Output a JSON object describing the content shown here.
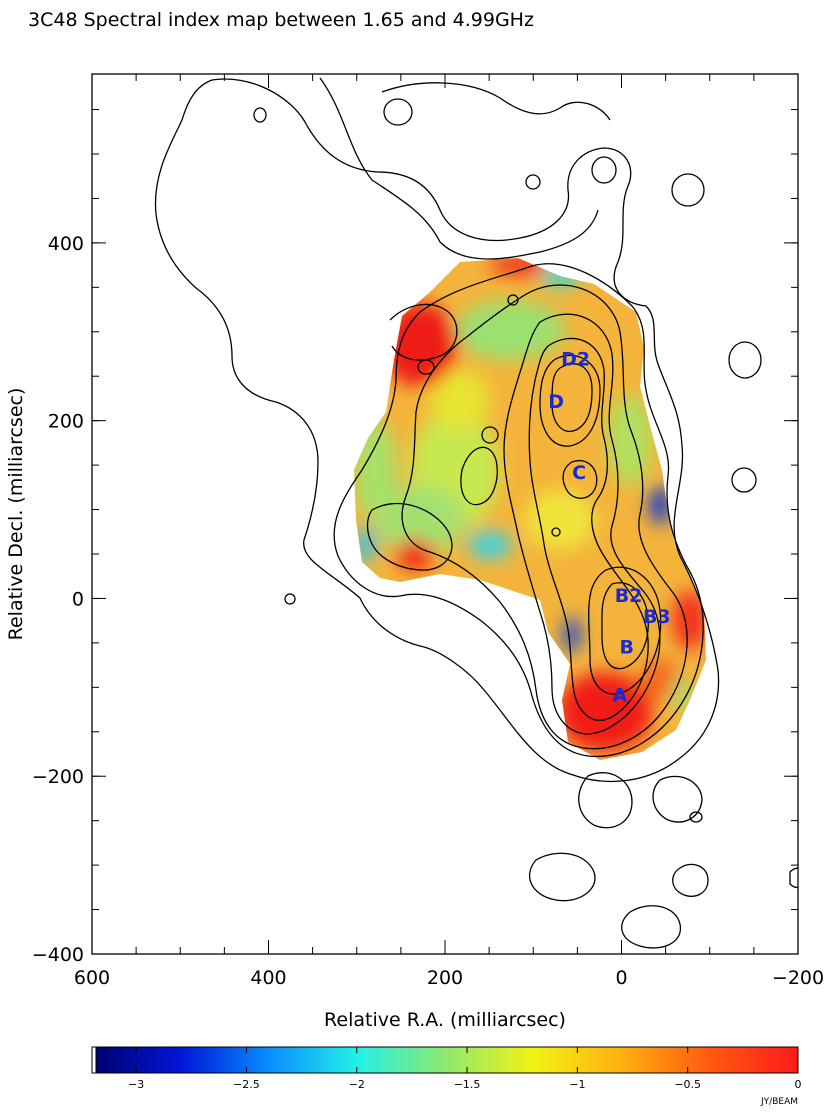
{
  "chart_data": {
    "type": "heatmap",
    "title": "3C48 Spectral index map between 1.65 and 4.99GHz",
    "xlabel": "Relative R.A. (milliarcsec)",
    "ylabel": "Relative Decl. (milliarcsec)",
    "xlim": [
      600,
      -200
    ],
    "ylim": [
      -400,
      590
    ],
    "x_ticks": [
      600,
      400,
      200,
      0,
      -200
    ],
    "x_tick_labels": [
      "600",
      "400",
      "200",
      "0",
      "−200"
    ],
    "y_ticks": [
      -400,
      -200,
      0,
      200,
      400
    ],
    "y_tick_labels": [
      "−400",
      "−200",
      "0",
      "200",
      "400"
    ],
    "colorbar": {
      "range": [
        -3.2,
        0
      ],
      "ticks": [
        -3,
        -2.5,
        -2,
        -1.5,
        -1,
        -0.5,
        0
      ],
      "tick_labels": [
        "−3",
        "−2.5",
        "−2",
        "−1.5",
        "−1",
        "−0.5",
        "0"
      ],
      "unit": "JY/BEAM",
      "colors": [
        "#00006e",
        "#0016d6",
        "#0a8cff",
        "#22f0e6",
        "#8ee870",
        "#f2f214",
        "#ffb010",
        "#ff5a10",
        "#ff1a1a"
      ]
    },
    "components": [
      {
        "label": "D2",
        "x": 52,
        "y": 270
      },
      {
        "label": "D",
        "x": 74,
        "y": 222
      },
      {
        "label": "C",
        "x": 48,
        "y": 142
      },
      {
        "label": "B2",
        "x": -8,
        "y": 4
      },
      {
        "label": "B3",
        "x": -40,
        "y": -20
      },
      {
        "label": "B",
        "x": -6,
        "y": -54
      },
      {
        "label": "A",
        "x": 2,
        "y": -108
      }
    ],
    "grid": false
  }
}
